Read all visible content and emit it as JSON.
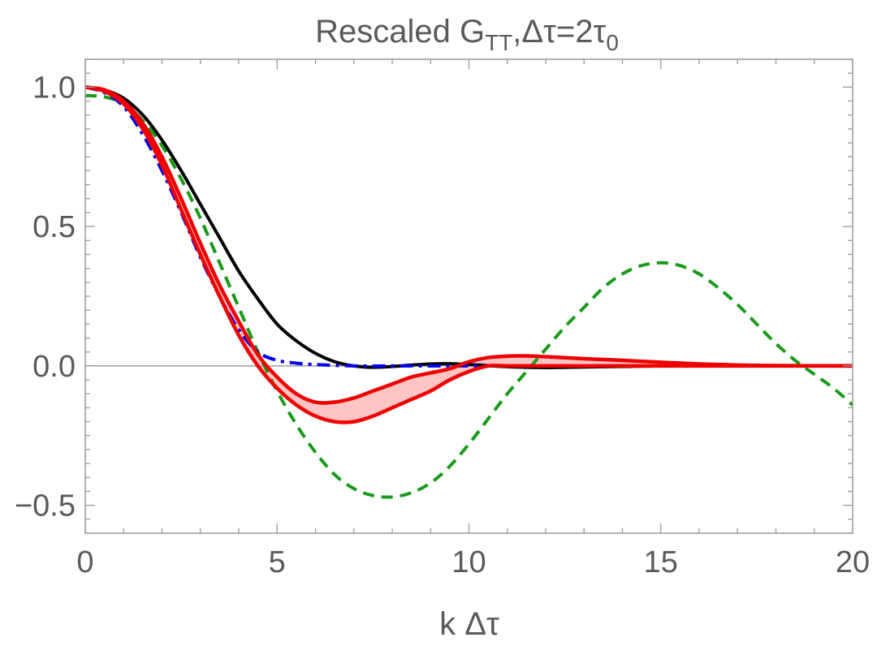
{
  "chart_data": {
    "type": "line",
    "title": {
      "prefix": "Rescaled G",
      "subscript": "TT",
      "suffix": ",Δτ=2τ",
      "suffix_subscript": "0"
    },
    "xlabel": "k Δτ",
    "ylabel": "",
    "xlim": [
      0,
      20
    ],
    "ylim": [
      -0.6,
      1.1
    ],
    "x_ticks": [
      0,
      5,
      10,
      15,
      20
    ],
    "x_tick_labels": [
      "0",
      "5",
      "10",
      "15",
      "20"
    ],
    "y_ticks": [
      1.0,
      0.5,
      0.0,
      -0.5
    ],
    "y_tick_labels": [
      "1.0",
      "0.5",
      "0.0",
      "−0.5"
    ],
    "grid": false,
    "zero_line": true,
    "series": [
      {
        "name": "black-solid",
        "color": "#000000",
        "style": "solid",
        "points": [
          [
            0,
            1.0
          ],
          [
            0.5,
            0.99
          ],
          [
            1,
            0.96
          ],
          [
            1.5,
            0.9
          ],
          [
            2,
            0.81
          ],
          [
            2.5,
            0.7
          ],
          [
            3,
            0.58
          ],
          [
            3.5,
            0.46
          ],
          [
            4,
            0.34
          ],
          [
            4.5,
            0.24
          ],
          [
            5,
            0.15
          ],
          [
            5.5,
            0.09
          ],
          [
            6,
            0.045
          ],
          [
            6.5,
            0.015
          ],
          [
            7,
            0.0
          ],
          [
            7.5,
            -0.005
          ],
          [
            8,
            -0.002
          ],
          [
            8.5,
            0.003
          ],
          [
            9,
            0.007
          ],
          [
            9.5,
            0.008
          ],
          [
            10,
            0.005
          ],
          [
            10.5,
            0.001
          ],
          [
            11,
            -0.003
          ],
          [
            12,
            -0.006
          ],
          [
            13,
            -0.004
          ],
          [
            14,
            -0.002
          ],
          [
            15,
            0.0
          ],
          [
            16,
            0.0
          ],
          [
            17,
            0.0
          ],
          [
            18,
            0.0
          ],
          [
            19,
            0.0
          ],
          [
            20,
            0.0
          ]
        ]
      },
      {
        "name": "blue-dashdot",
        "color": "#0000ee",
        "style": "dashdot",
        "points": [
          [
            0,
            1.0
          ],
          [
            0.5,
            0.98
          ],
          [
            1,
            0.93
          ],
          [
            1.5,
            0.83
          ],
          [
            2,
            0.7
          ],
          [
            2.5,
            0.55
          ],
          [
            3,
            0.39
          ],
          [
            3.5,
            0.25
          ],
          [
            4,
            0.13
          ],
          [
            4.5,
            0.05
          ],
          [
            5,
            0.02
          ],
          [
            5.5,
            0.01
          ],
          [
            6,
            0.005
          ],
          [
            7,
            0.0
          ],
          [
            8,
            0.0
          ],
          [
            9,
            0.0
          ],
          [
            10,
            0.0
          ],
          [
            12,
            0.0
          ],
          [
            14,
            0.0
          ],
          [
            16,
            0.0
          ],
          [
            18,
            0.0
          ],
          [
            20,
            0.0
          ]
        ]
      },
      {
        "name": "green-dashed",
        "color": "#1a9a1a",
        "style": "dashed",
        "points": [
          [
            0,
            0.97
          ],
          [
            0.5,
            0.965
          ],
          [
            1,
            0.94
          ],
          [
            1.5,
            0.88
          ],
          [
            2,
            0.79
          ],
          [
            2.5,
            0.67
          ],
          [
            3,
            0.53
          ],
          [
            3.5,
            0.37
          ],
          [
            4,
            0.21
          ],
          [
            4.5,
            0.05
          ],
          [
            5,
            -0.09
          ],
          [
            5.5,
            -0.21
          ],
          [
            6,
            -0.31
          ],
          [
            6.5,
            -0.39
          ],
          [
            7,
            -0.44
          ],
          [
            7.5,
            -0.465
          ],
          [
            8,
            -0.47
          ],
          [
            8.5,
            -0.455
          ],
          [
            9,
            -0.42
          ],
          [
            9.5,
            -0.36
          ],
          [
            10,
            -0.28
          ],
          [
            10.5,
            -0.19
          ],
          [
            11,
            -0.1
          ],
          [
            11.5,
            -0.02
          ],
          [
            12,
            0.06
          ],
          [
            12.5,
            0.14
          ],
          [
            13,
            0.21
          ],
          [
            13.5,
            0.28
          ],
          [
            14,
            0.33
          ],
          [
            14.5,
            0.36
          ],
          [
            15,
            0.37
          ],
          [
            15.5,
            0.36
          ],
          [
            16,
            0.33
          ],
          [
            16.5,
            0.28
          ],
          [
            17,
            0.22
          ],
          [
            17.5,
            0.15
          ],
          [
            18,
            0.08
          ],
          [
            18.5,
            0.02
          ],
          [
            19,
            -0.03
          ],
          [
            19.5,
            -0.08
          ],
          [
            20,
            -0.14
          ]
        ]
      },
      {
        "name": "red-lower",
        "color": "#ee0000",
        "style": "solid",
        "points": [
          [
            0,
            1.0
          ],
          [
            0.5,
            0.985
          ],
          [
            1,
            0.94
          ],
          [
            1.5,
            0.85
          ],
          [
            2,
            0.72
          ],
          [
            2.5,
            0.56
          ],
          [
            3,
            0.4
          ],
          [
            3.5,
            0.25
          ],
          [
            4,
            0.11
          ],
          [
            4.5,
            0.0
          ],
          [
            5,
            -0.08
          ],
          [
            5.5,
            -0.14
          ],
          [
            6,
            -0.18
          ],
          [
            6.5,
            -0.2
          ],
          [
            7,
            -0.2
          ],
          [
            7.5,
            -0.18
          ],
          [
            8,
            -0.15
          ],
          [
            8.5,
            -0.12
          ],
          [
            9,
            -0.09
          ],
          [
            9.5,
            -0.05
          ],
          [
            10,
            -0.02
          ],
          [
            10.5,
            0.0
          ],
          [
            11,
            0.0
          ],
          [
            11.5,
            0.0
          ],
          [
            12,
            0.0
          ],
          [
            13,
            0.0
          ],
          [
            14,
            0.0
          ],
          [
            15,
            0.0
          ],
          [
            16,
            0.0
          ],
          [
            17,
            0.0
          ],
          [
            18,
            0.0
          ],
          [
            20,
            0.0
          ]
        ]
      },
      {
        "name": "red-upper",
        "color": "#ee0000",
        "style": "solid",
        "points": [
          [
            0,
            1.0
          ],
          [
            0.5,
            0.99
          ],
          [
            1,
            0.95
          ],
          [
            1.5,
            0.87
          ],
          [
            2,
            0.75
          ],
          [
            2.5,
            0.6
          ],
          [
            3,
            0.44
          ],
          [
            3.5,
            0.29
          ],
          [
            4,
            0.16
          ],
          [
            4.5,
            0.04
          ],
          [
            5,
            -0.04
          ],
          [
            5.5,
            -0.1
          ],
          [
            6,
            -0.13
          ],
          [
            6.5,
            -0.13
          ],
          [
            7,
            -0.115
          ],
          [
            7.5,
            -0.09
          ],
          [
            8,
            -0.065
          ],
          [
            8.5,
            -0.04
          ],
          [
            9,
            -0.025
          ],
          [
            9.5,
            -0.01
          ],
          [
            10,
            0.015
          ],
          [
            10.5,
            0.03
          ],
          [
            11,
            0.035
          ],
          [
            11.5,
            0.036
          ],
          [
            12,
            0.033
          ],
          [
            13,
            0.026
          ],
          [
            14,
            0.02
          ],
          [
            15,
            0.013
          ],
          [
            16,
            0.007
          ],
          [
            17,
            0.003
          ],
          [
            18,
            0.001
          ],
          [
            20,
            0.0
          ]
        ]
      }
    ],
    "band": {
      "between": [
        "red-lower",
        "red-upper"
      ],
      "color": "#ffc4c4"
    }
  }
}
